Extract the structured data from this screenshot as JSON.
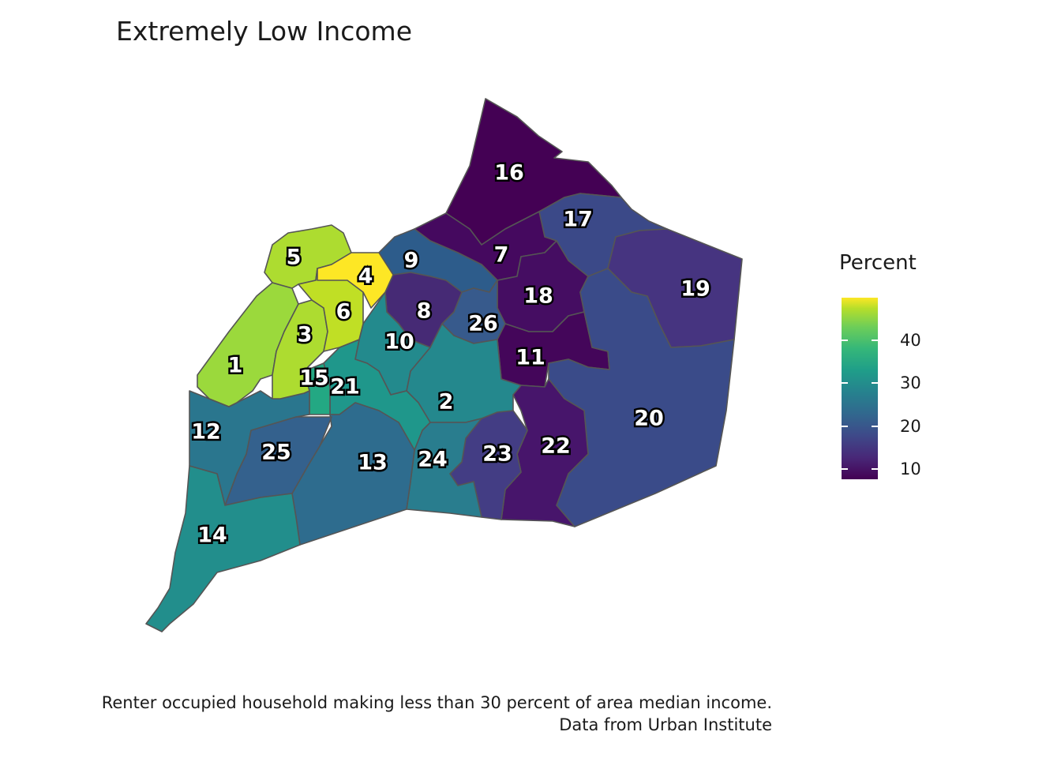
{
  "title": "Extremely Low Income",
  "legend": {
    "title": "Percent",
    "ticks": [
      "40",
      "30",
      "20",
      "10"
    ]
  },
  "caption": {
    "line1": "Renter occupied household making less than 30 percent of area median income.",
    "line2": "Data from Urban Institute"
  },
  "colors": {
    "outline": "#555555",
    "low": "#440154",
    "high": "#fde725"
  },
  "districts": [
    {
      "id": "1",
      "label": "1",
      "color": "#9bd93c"
    },
    {
      "id": "2",
      "label": "2",
      "color": "#24888d"
    },
    {
      "id": "3",
      "label": "3",
      "color": "#addc30"
    },
    {
      "id": "4",
      "label": "4",
      "color": "#fde725"
    },
    {
      "id": "5",
      "label": "5",
      "color": "#addc30"
    },
    {
      "id": "6",
      "label": "6",
      "color": "#c0df25"
    },
    {
      "id": "7",
      "label": "7",
      "color": "#45095f"
    },
    {
      "id": "8",
      "label": "8",
      "color": "#462a75"
    },
    {
      "id": "9",
      "label": "9",
      "color": "#2d5c8b"
    },
    {
      "id": "10",
      "label": "10",
      "color": "#238a8d"
    },
    {
      "id": "11",
      "label": "11",
      "color": "#44065a"
    },
    {
      "id": "12",
      "label": "12",
      "color": "#2a768e"
    },
    {
      "id": "13",
      "label": "13",
      "color": "#2e6c8e"
    },
    {
      "id": "14",
      "label": "14",
      "color": "#228e8c"
    },
    {
      "id": "15",
      "label": "15",
      "color": "#23a883"
    },
    {
      "id": "16",
      "label": "16",
      "color": "#440154"
    },
    {
      "id": "17",
      "label": "17",
      "color": "#3b4988"
    },
    {
      "id": "18",
      "label": "18",
      "color": "#450d62"
    },
    {
      "id": "19",
      "label": "19",
      "color": "#463480"
    },
    {
      "id": "20",
      "label": "20",
      "color": "#3a4b89"
    },
    {
      "id": "21",
      "label": "21",
      "color": "#1f978b"
    },
    {
      "id": "22",
      "label": "22",
      "color": "#47156b"
    },
    {
      "id": "23",
      "label": "23",
      "color": "#433d84"
    },
    {
      "id": "24",
      "label": "24",
      "color": "#297d8e"
    },
    {
      "id": "25",
      "label": "25",
      "color": "#34618d"
    },
    {
      "id": "26",
      "label": "26",
      "color": "#375a8c"
    }
  ]
}
